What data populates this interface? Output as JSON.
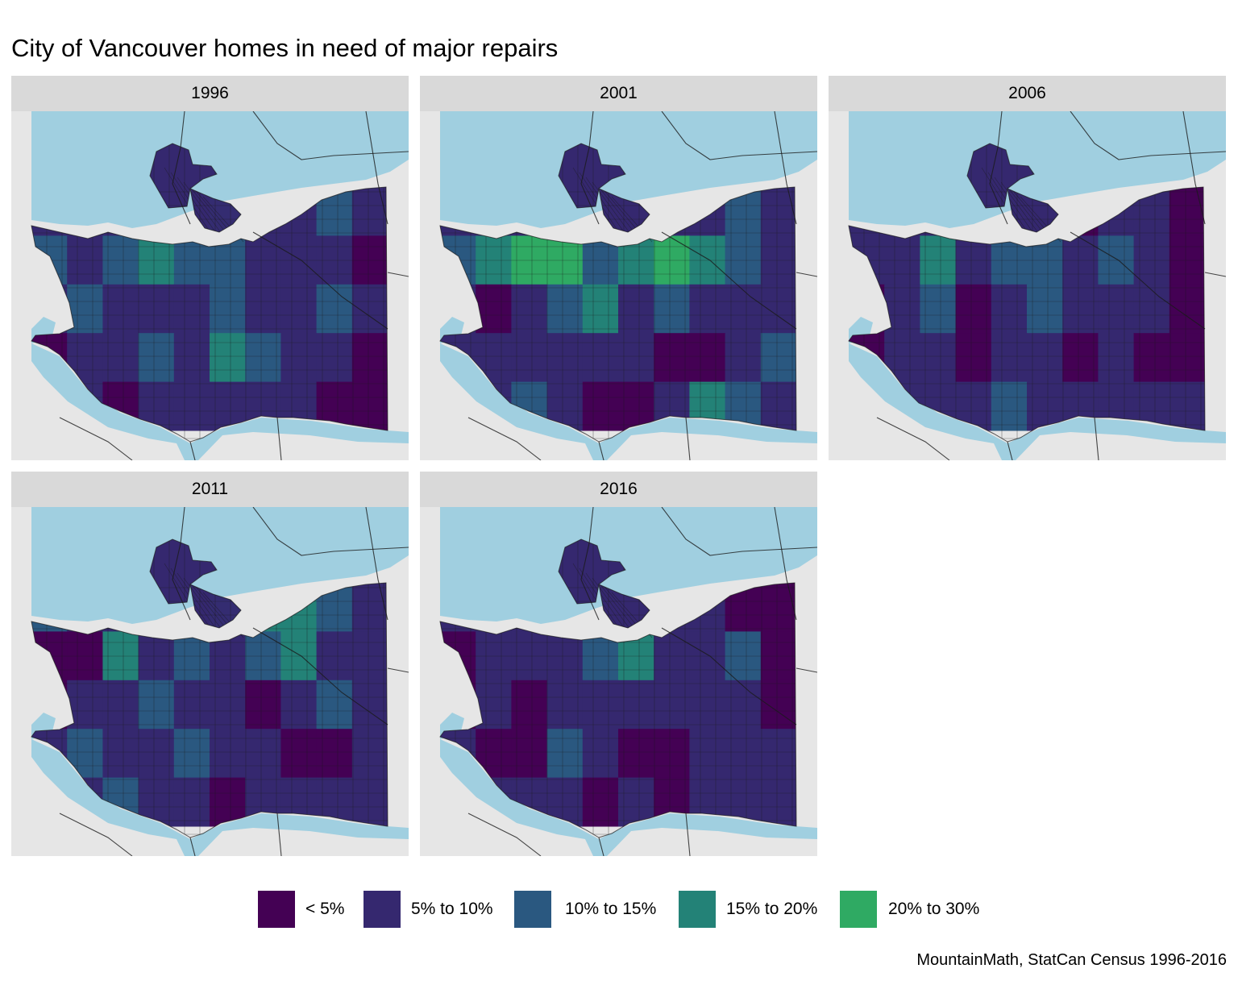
{
  "title": "City of Vancouver homes in need of major repairs",
  "caption": "MountainMath, StatCan Census 1996-2016",
  "colors": {
    "land": "#e6e6e6",
    "water": "#a0cfe0",
    "roads": "#1a1a1a",
    "strip": "#d9d9d9"
  },
  "legend": [
    {
      "label": "< 5%",
      "color": "#440154"
    },
    {
      "label": "5% to 10%",
      "color": "#35286f"
    },
    {
      "label": "10% to 15%",
      "color": "#2a5880"
    },
    {
      "label": "15% to 20%",
      "color": "#238277"
    },
    {
      "label": "20% to 30%",
      "color": "#2faa63"
    }
  ],
  "panels": [
    {
      "year": "1996",
      "profile": [
        1,
        1,
        1,
        1,
        1,
        2,
        1,
        1,
        2,
        1,
        2,
        1,
        2,
        3,
        2,
        2,
        1,
        1,
        1,
        0,
        1,
        2,
        1,
        1,
        1,
        2,
        1,
        1,
        2,
        1,
        0,
        1,
        1,
        2,
        1,
        3,
        2,
        1,
        1,
        0,
        1,
        1,
        0,
        1,
        1,
        1,
        1,
        1,
        0,
        0
      ]
    },
    {
      "year": "2001",
      "profile": [
        1,
        1,
        1,
        2,
        1,
        1,
        1,
        1,
        2,
        1,
        2,
        3,
        4,
        4,
        2,
        3,
        4,
        3,
        2,
        1,
        1,
        0,
        1,
        2,
        3,
        1,
        2,
        1,
        1,
        1,
        1,
        1,
        1,
        1,
        1,
        1,
        0,
        0,
        1,
        2,
        1,
        1,
        2,
        1,
        0,
        0,
        1,
        3,
        2,
        1
      ]
    },
    {
      "year": "2006",
      "profile": [
        1,
        1,
        1,
        2,
        1,
        1,
        0,
        1,
        1,
        0,
        1,
        1,
        3,
        1,
        2,
        2,
        1,
        2,
        1,
        0,
        0,
        1,
        2,
        0,
        1,
        2,
        1,
        1,
        1,
        0,
        0,
        1,
        1,
        0,
        1,
        1,
        0,
        1,
        0,
        0,
        1,
        1,
        1,
        1,
        2,
        1,
        1,
        1,
        1,
        1
      ]
    },
    {
      "year": "2011",
      "profile": [
        2,
        1,
        1,
        1,
        1,
        2,
        3,
        3,
        2,
        1,
        0,
        0,
        3,
        1,
        2,
        1,
        2,
        3,
        1,
        1,
        0,
        1,
        1,
        2,
        1,
        1,
        0,
        1,
        2,
        1,
        1,
        2,
        1,
        1,
        2,
        1,
        1,
        0,
        0,
        1,
        1,
        1,
        2,
        1,
        1,
        0,
        1,
        1,
        1,
        1
      ]
    },
    {
      "year": "2016",
      "profile": [
        1,
        1,
        1,
        1,
        1,
        1,
        1,
        1,
        0,
        0,
        0,
        1,
        1,
        1,
        2,
        3,
        1,
        1,
        2,
        0,
        0,
        1,
        0,
        1,
        1,
        1,
        1,
        1,
        1,
        0,
        1,
        0,
        0,
        2,
        1,
        0,
        0,
        1,
        1,
        1,
        1,
        1,
        1,
        1,
        0,
        1,
        0,
        1,
        1,
        1
      ]
    }
  ]
}
